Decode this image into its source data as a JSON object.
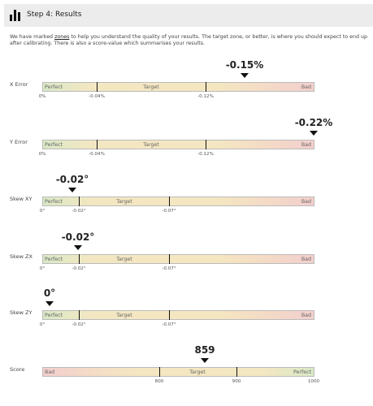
{
  "header": {
    "title": "Step 4: Results"
  },
  "intro": {
    "before": "We have marked ",
    "link": "zones",
    "after": " to help you understand the quality of your results. The target zone, or better, is where you should expect to end up after calibrating. There is also a score-value which summarises your results."
  },
  "rows": [
    {
      "label": "X Error",
      "result": "-0.15%",
      "zones": [
        "Perfect",
        "Target",
        "Bad"
      ],
      "ticks": [
        "0%",
        "-0.04%",
        "-0.12%"
      ]
    },
    {
      "label": "Y Error",
      "result": "-0.22%",
      "zones": [
        "Perfect",
        "Target",
        "Bad"
      ],
      "ticks": [
        "0%",
        "-0.04%",
        "-0.12%"
      ]
    },
    {
      "label": "Skew XY",
      "result": "-0.02°",
      "zones": [
        "Perfect",
        "Target",
        "Bad"
      ],
      "ticks": [
        "0°",
        "-0.02°",
        "-0.07°"
      ]
    },
    {
      "label": "Skew ZX",
      "result": "-0.02°",
      "zones": [
        "Perfect",
        "Target",
        "Bad"
      ],
      "ticks": [
        "0°",
        "-0.02°",
        "-0.07°"
      ]
    },
    {
      "label": "Skew ZY",
      "result": "0°",
      "zones": [
        "Perfect",
        "Target",
        "Bad"
      ],
      "ticks": [
        "0°",
        "-0.02°",
        "-0.07°"
      ]
    },
    {
      "label": "Score",
      "result": "859",
      "zones": [
        "Bad",
        "Target",
        "Perfect"
      ],
      "ticks": [
        "800",
        "900",
        "1000"
      ]
    }
  ]
}
